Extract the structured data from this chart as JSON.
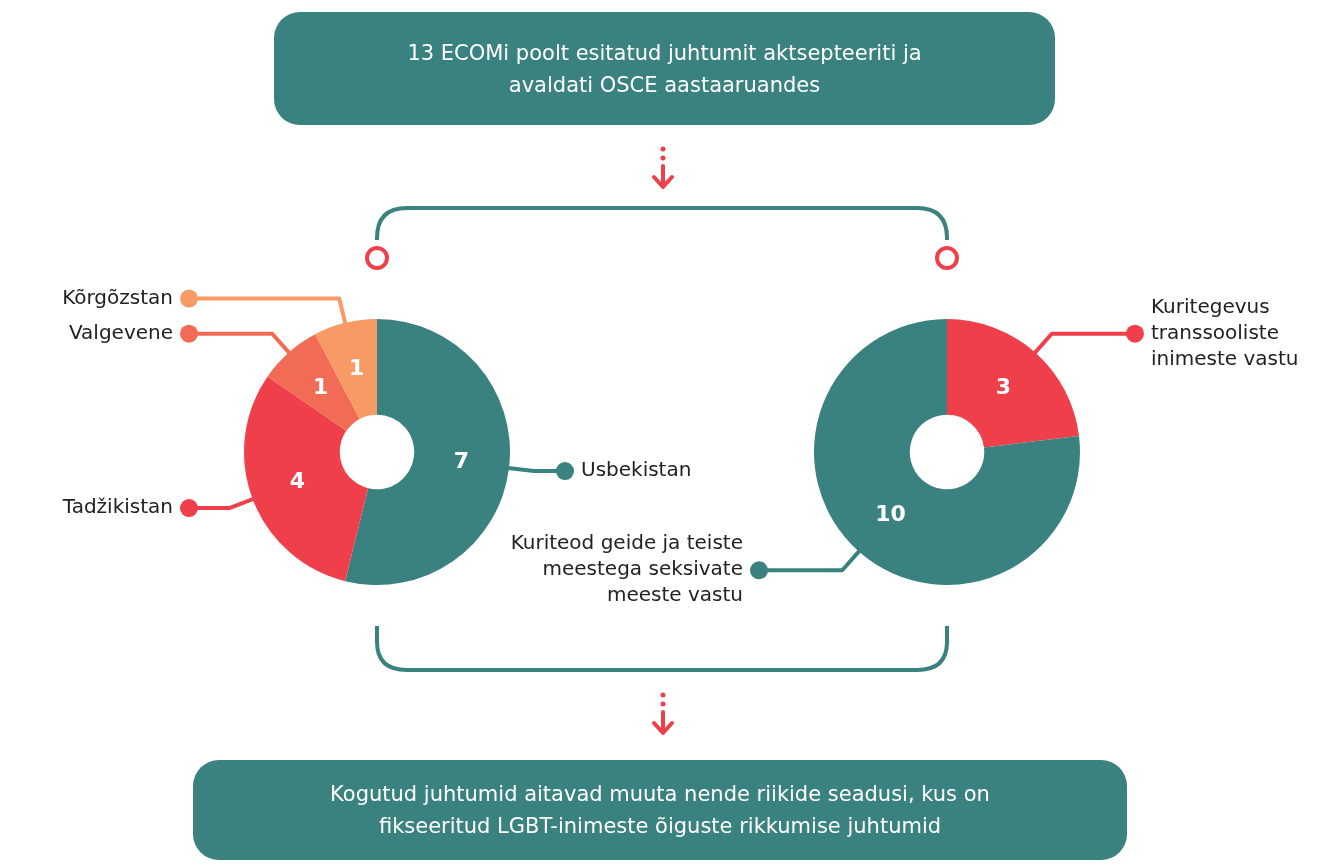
{
  "chart_data": [
    {
      "type": "other",
      "title": "13 ECOMi poolt esitatud juhtumit aktsepteeriti ja avaldati OSCE aastaaruandes"
    },
    {
      "type": "donut",
      "categories": [
        "Usbekistan",
        "Tadžikistan",
        "Valgevene",
        "Kõrgõzstan"
      ],
      "values": [
        7,
        4,
        1,
        1
      ],
      "colors": [
        "#3a827f",
        "#ef3f4a",
        "#f26b55",
        "#f79a66"
      ],
      "data_labels": true,
      "legend": "left"
    },
    {
      "type": "donut",
      "categories": [
        "Kuritegevus transsooliste inimeste vastu",
        "Kuriteod geide ja teiste meestega seksivate meeste vastu"
      ],
      "values": [
        3,
        10
      ],
      "colors": [
        "#ef3f4a",
        "#3a827f"
      ],
      "data_labels": true,
      "legend": "right"
    },
    {
      "type": "other",
      "title": "Kogutud juhtumid aitavad muuta nende riikide seadusi, kus on fikseeritud LGBT-inimeste õiguste rikkumise juhtumid"
    }
  ]
}
